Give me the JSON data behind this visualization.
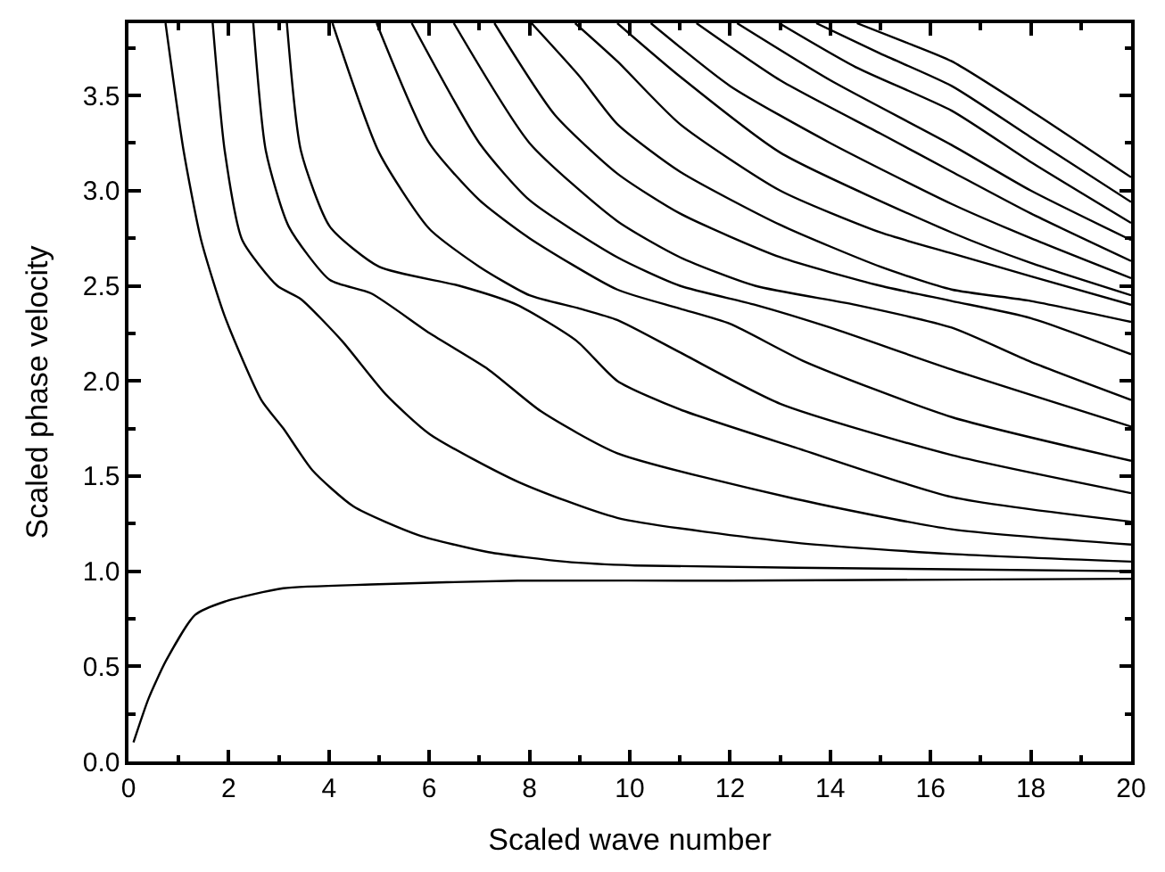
{
  "chart_data": {
    "type": "line",
    "xlabel": "Scaled wave number",
    "ylabel": "Scaled phase velocity",
    "xlim": [
      0,
      20
    ],
    "ylim": [
      0,
      3.88
    ],
    "xticks": [
      0,
      {
        "value": 1,
        "label": null
      },
      2,
      {
        "value": 3,
        "label": null
      },
      4,
      {
        "value": 5,
        "label": null
      },
      6,
      {
        "value": 7,
        "label": null
      },
      8,
      {
        "value": 9,
        "label": null
      },
      10,
      {
        "value": 11,
        "label": null
      },
      12,
      {
        "value": 13,
        "label": null
      },
      14,
      {
        "value": 15,
        "label": null
      },
      16,
      {
        "value": 17,
        "label": null
      },
      18,
      {
        "value": 19,
        "label": null
      },
      20
    ],
    "yticks": [
      {
        "value": 0,
        "label": "0.0"
      },
      {
        "value": 0.25,
        "label": null
      },
      {
        "value": 0.5,
        "label": "0.5"
      },
      {
        "value": 0.75,
        "label": null
      },
      {
        "value": 1,
        "label": "1.0"
      },
      {
        "value": 1.25,
        "label": null
      },
      {
        "value": 1.5,
        "label": "1.5"
      },
      {
        "value": 1.75,
        "label": null
      },
      {
        "value": 2,
        "label": "2.0"
      },
      {
        "value": 2.25,
        "label": null
      },
      {
        "value": 2.5,
        "label": "2.5"
      },
      {
        "value": 2.75,
        "label": null
      },
      {
        "value": 3,
        "label": "3.0"
      },
      {
        "value": 3.25,
        "label": null
      },
      {
        "value": 3.5,
        "label": "3.5"
      },
      {
        "value": 3.75,
        "label": null
      }
    ],
    "line_style": "solid",
    "series": [
      {
        "color": "#000000",
        "x": [
          0.1,
          0.4,
          0.75,
          1.33,
          1.92,
          3.09,
          4.84,
          7.77,
          12,
          20
        ],
        "values": [
          0.1,
          0.33,
          0.53,
          0.77,
          0.84,
          0.91,
          0.93,
          0.95,
          0.95,
          0.96
        ]
      },
      {
        "color": "#000000",
        "x": [
          0.74,
          1.1,
          1.45,
          1.92,
          2.65,
          3.09,
          3.67,
          4.49,
          5.78,
          7.18,
          8.7,
          10.1,
          16.42,
          20
        ],
        "values": [
          3.88,
          3.21,
          2.74,
          2.34,
          1.9,
          1.75,
          1.53,
          1.34,
          1.19,
          1.1,
          1.05,
          1.03,
          1.01,
          1.0
        ]
      },
      {
        "color": "#000000",
        "x": [
          1.68,
          1.92,
          2.27,
          2.97,
          3.44,
          4.26,
          5.13,
          6.01,
          7.77,
          9.75,
          13.3,
          16.42,
          20
        ],
        "values": [
          3.88,
          3.21,
          2.74,
          2.5,
          2.43,
          2.21,
          1.93,
          1.72,
          1.47,
          1.28,
          1.15,
          1.09,
          1.05
        ]
      },
      {
        "color": "#000000",
        "x": [
          2.49,
          2.74,
          3.2,
          4.02,
          4.84,
          6.01,
          7.18,
          8.23,
          9.75,
          13.3,
          16.42,
          20
        ],
        "values": [
          3.88,
          3.21,
          2.81,
          2.53,
          2.46,
          2.25,
          2.06,
          1.84,
          1.62,
          1.38,
          1.22,
          1.14
        ]
      },
      {
        "color": "#000000",
        "x": [
          3.16,
          3.44,
          4.02,
          5,
          6.6,
          7.75,
          8.94,
          9.75,
          11,
          13.3,
          16.42,
          20
        ],
        "values": [
          3.88,
          3.21,
          2.81,
          2.6,
          2.5,
          2.4,
          2.21,
          2.0,
          1.85,
          1.65,
          1.39,
          1.26
        ]
      },
      {
        "color": "#000000",
        "x": [
          4.07,
          5,
          6,
          7,
          8,
          9,
          9.75,
          11,
          13,
          16.42,
          20
        ],
        "values": [
          3.88,
          3.2,
          2.8,
          2.6,
          2.45,
          2.38,
          2.32,
          2.15,
          1.88,
          1.61,
          1.41
        ]
      },
      {
        "color": "#000000",
        "x": [
          4.95,
          6,
          7,
          8,
          9.75,
          11,
          12,
          13.5,
          16.42,
          20
        ],
        "values": [
          3.88,
          3.25,
          2.95,
          2.75,
          2.48,
          2.38,
          2.3,
          2.1,
          1.81,
          1.58
        ]
      },
      {
        "color": "#000000",
        "x": [
          5.65,
          7,
          8,
          9.75,
          11,
          12.5,
          14,
          16.42,
          20
        ],
        "values": [
          3.88,
          3.25,
          2.95,
          2.65,
          2.5,
          2.4,
          2.28,
          2.06,
          1.76
        ]
      },
      {
        "color": "#000000",
        "x": [
          6.49,
          8,
          9.75,
          11,
          12.5,
          14.5,
          16.42,
          18,
          20
        ],
        "values": [
          3.88,
          3.25,
          2.84,
          2.65,
          2.5,
          2.4,
          2.28,
          2.1,
          1.9
        ]
      },
      {
        "color": "#000000",
        "x": [
          7.3,
          8.5,
          9.75,
          11,
          13,
          15,
          16.42,
          18,
          20
        ],
        "values": [
          3.88,
          3.4,
          3.09,
          2.88,
          2.65,
          2.5,
          2.42,
          2.33,
          2.14
        ]
      },
      {
        "color": "#000000",
        "x": [
          8.04,
          9,
          9.75,
          11,
          13,
          15,
          16.42,
          18,
          20
        ],
        "values": [
          3.88,
          3.6,
          3.35,
          3.1,
          2.82,
          2.6,
          2.48,
          2.42,
          2.31
        ]
      },
      {
        "color": "#000000",
        "x": [
          8.91,
          9.75,
          11,
          13,
          15,
          16.42,
          18,
          20
        ],
        "values": [
          3.88,
          3.68,
          3.35,
          3.0,
          2.78,
          2.67,
          2.55,
          2.4
        ]
      },
      {
        "color": "#000000",
        "x": [
          9.75,
          11,
          13,
          16.42,
          18,
          20
        ],
        "values": [
          3.88,
          3.6,
          3.2,
          2.78,
          2.62,
          2.45
        ]
      },
      {
        "color": "#000000",
        "x": [
          10.42,
          12,
          14,
          16.42,
          18,
          20
        ],
        "values": [
          3.88,
          3.55,
          3.25,
          2.93,
          2.75,
          2.54
        ]
      },
      {
        "color": "#000000",
        "x": [
          11.33,
          13,
          15,
          16.42,
          18,
          20
        ],
        "values": [
          3.88,
          3.58,
          3.3,
          3.1,
          2.88,
          2.63
        ]
      },
      {
        "color": "#000000",
        "x": [
          12.14,
          14,
          16.42,
          18,
          20
        ],
        "values": [
          3.88,
          3.58,
          3.24,
          3.0,
          2.74
        ]
      },
      {
        "color": "#000000",
        "x": [
          12.98,
          14.5,
          16.42,
          18,
          20
        ],
        "values": [
          3.88,
          3.65,
          3.42,
          3.15,
          2.83
        ]
      },
      {
        "color": "#000000",
        "x": [
          13.72,
          15,
          16.42,
          18,
          20
        ],
        "values": [
          3.88,
          3.72,
          3.55,
          3.28,
          2.94
        ]
      },
      {
        "color": "#000000",
        "x": [
          14.53,
          15.5,
          16.42,
          18,
          20
        ],
        "values": [
          3.88,
          3.78,
          3.68,
          3.42,
          3.07
        ]
      }
    ]
  }
}
